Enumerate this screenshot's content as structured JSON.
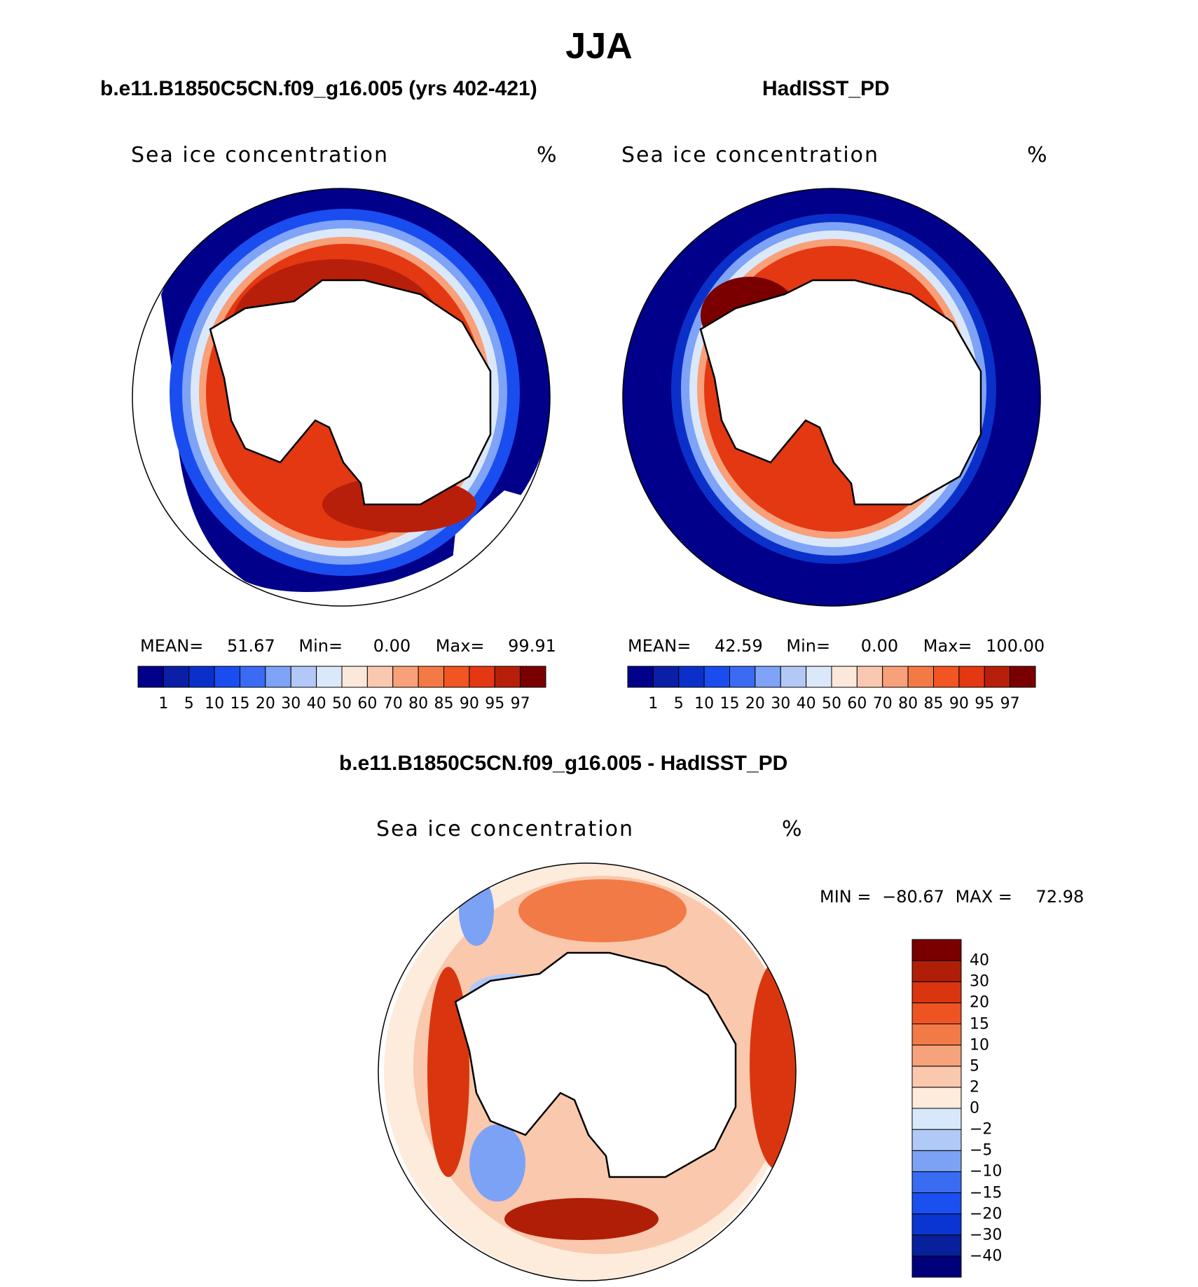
{
  "header": {
    "title": "JJA"
  },
  "panels": {
    "model": {
      "title": "b.e11.B1850C5CN.f09_g16.005 (yrs 402-421)",
      "label": "Sea ice concentration",
      "units": "%",
      "mean_label": "MEAN=",
      "mean": "51.67",
      "min_label": "Min=",
      "min": "0.00",
      "max_label": "Max=",
      "max": "99.91"
    },
    "obs": {
      "title": "HadISST_PD",
      "label": "Sea ice concentration",
      "units": "%",
      "mean_label": "MEAN=",
      "mean": "42.59",
      "min_label": "Min=",
      "min": "0.00",
      "max_label": "Max=",
      "max": "100.00"
    },
    "diff": {
      "title": "b.e11.B1850C5CN.f09_g16.005 - HadISST_PD",
      "label": "Sea ice concentration",
      "units": "%",
      "min_label": "MIN =",
      "min": "−80.67",
      "max_label": "MAX =",
      "max": "72.98"
    }
  },
  "colorbar_main": {
    "colors": [
      "#00008a",
      "#0a1fa6",
      "#0b30c9",
      "#1a4df0",
      "#3b6bf2",
      "#7ea3f7",
      "#b3c8f7",
      "#dbe8fa",
      "#fce8da",
      "#fac8b0",
      "#f7a07a",
      "#f47a45",
      "#f05522",
      "#e33812",
      "#b81f0a",
      "#7a0000"
    ],
    "ticks": [
      "1",
      "5",
      "10",
      "15",
      "20",
      "30",
      "40",
      "50",
      "60",
      "70",
      "80",
      "85",
      "90",
      "95",
      "97"
    ]
  },
  "colorbar_diff": {
    "colors": [
      "#00007a",
      "#08209c",
      "#0b35d0",
      "#1a4ff0",
      "#3a6cf2",
      "#7ca2f6",
      "#b1c9f7",
      "#d8e8fb",
      "#fdebdc",
      "#f9c8ad",
      "#f6a27a",
      "#f27a46",
      "#ed5421",
      "#d9360f",
      "#b01e08",
      "#7a0000"
    ],
    "ticks": [
      "40",
      "30",
      "20",
      "15",
      "10",
      "5",
      "2",
      "0",
      "−2",
      "−5",
      "−10",
      "−15",
      "−20",
      "−30",
      "−40"
    ]
  }
}
